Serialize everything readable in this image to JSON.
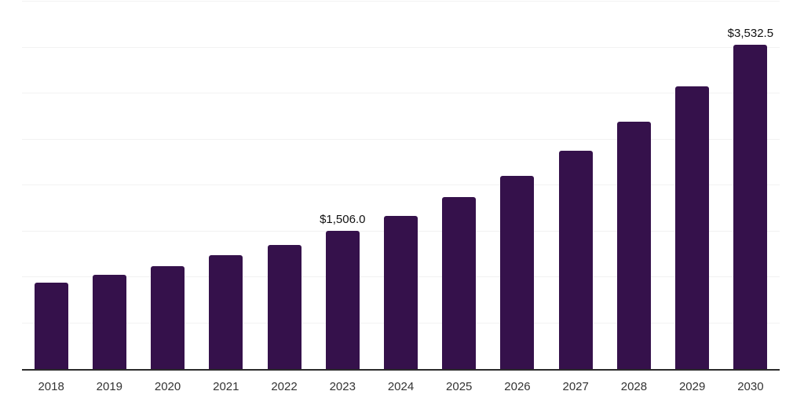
{
  "chart_data": {
    "type": "bar",
    "title": "",
    "xlabel": "",
    "ylabel": "",
    "categories": [
      "2018",
      "2019",
      "2020",
      "2021",
      "2022",
      "2023",
      "2024",
      "2025",
      "2026",
      "2027",
      "2028",
      "2029",
      "2030"
    ],
    "values": [
      938,
      1026,
      1117,
      1242,
      1353,
      1506.0,
      1669,
      1869,
      2103,
      2374,
      2690,
      3077,
      3532.5
    ],
    "data_labels": {
      "2023": "$1,506.0",
      "2030": "$3,532.5"
    },
    "ylim": [
      0,
      4000
    ],
    "gridline_interval": 500,
    "grid": "horizontal, no y-axis tick labels",
    "legend_position": "none",
    "colors": {
      "bar_fill": "#35114b",
      "gridline": "#f2f2f2",
      "axis_line": "#2b2b2b",
      "tick_label": "#333333",
      "data_label": "#111111",
      "background": "#ffffff"
    }
  }
}
